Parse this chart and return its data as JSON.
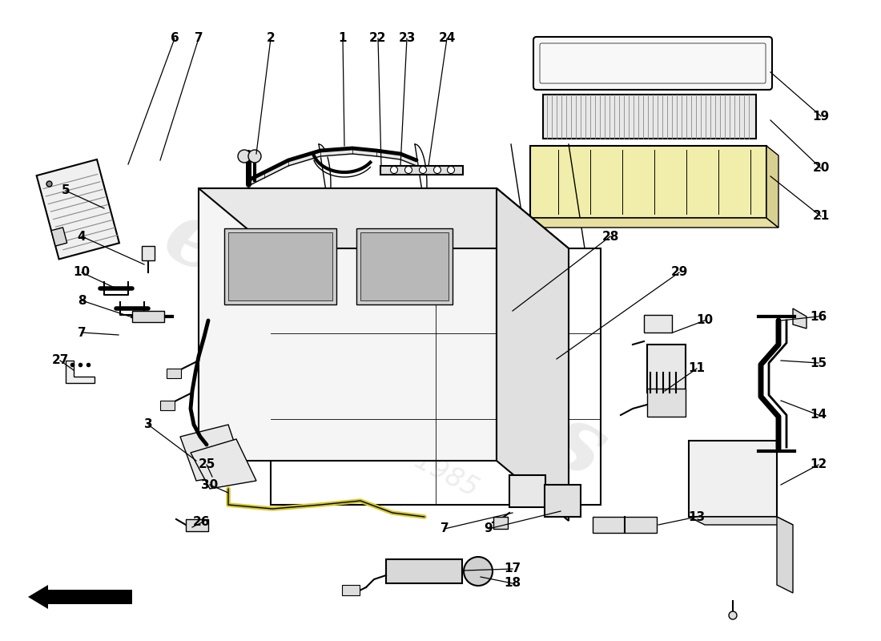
{
  "bg": "#ffffff",
  "lc": "#000000",
  "highlight": "#f0eeaa",
  "gray_light": "#f0f0f0",
  "gray_mid": "#d8d8d8",
  "wm1_color": "#cccccc",
  "wm2_color": "#c8c8c8",
  "figsize": [
    11.0,
    8.0
  ],
  "dpi": 100,
  "xlim": [
    0,
    1100
  ],
  "ylim": [
    0,
    800
  ]
}
